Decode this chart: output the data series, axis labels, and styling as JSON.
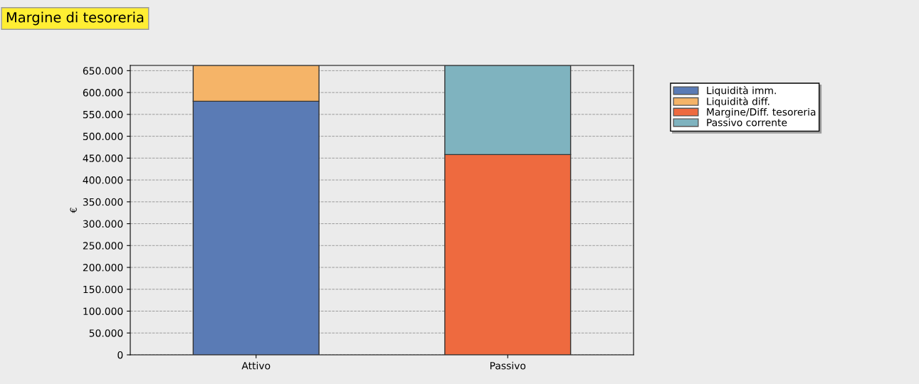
{
  "chart_data": {
    "type": "bar",
    "title": "Margine di tesoreria",
    "ylabel": "€",
    "stacked": true,
    "categories": [
      "Attivo",
      "Passivo"
    ],
    "series": [
      {
        "name": "Liquidità imm.",
        "color": "#5a7bb5",
        "values": [
          580000,
          null
        ]
      },
      {
        "name": "Liquidità diff.",
        "color": "#f5b468",
        "values": [
          82000,
          null
        ]
      },
      {
        "name": "Margine/Diff. tesoreria",
        "color": "#ee6a3f",
        "values": [
          null,
          458000
        ]
      },
      {
        "name": "Passivo corrente",
        "color": "#7fb3bf",
        "values": [
          null,
          204000
        ]
      }
    ],
    "ylim": [
      0,
      662000
    ],
    "yticks": [
      {
        "value": 0,
        "label": "0"
      },
      {
        "value": 50000,
        "label": "50.000"
      },
      {
        "value": 100000,
        "label": "100.000"
      },
      {
        "value": 150000,
        "label": "150.000"
      },
      {
        "value": 200000,
        "label": "200.000"
      },
      {
        "value": 250000,
        "label": "250.000"
      },
      {
        "value": 300000,
        "label": "300.000"
      },
      {
        "value": 350000,
        "label": "350.000"
      },
      {
        "value": 400000,
        "label": "400.000"
      },
      {
        "value": 450000,
        "label": "450.000"
      },
      {
        "value": 500000,
        "label": "500.000"
      },
      {
        "value": 550000,
        "label": "550.000"
      },
      {
        "value": 600000,
        "label": "600.000"
      },
      {
        "value": 650000,
        "label": "650.000"
      }
    ],
    "grid": "y",
    "legend": "top right"
  }
}
